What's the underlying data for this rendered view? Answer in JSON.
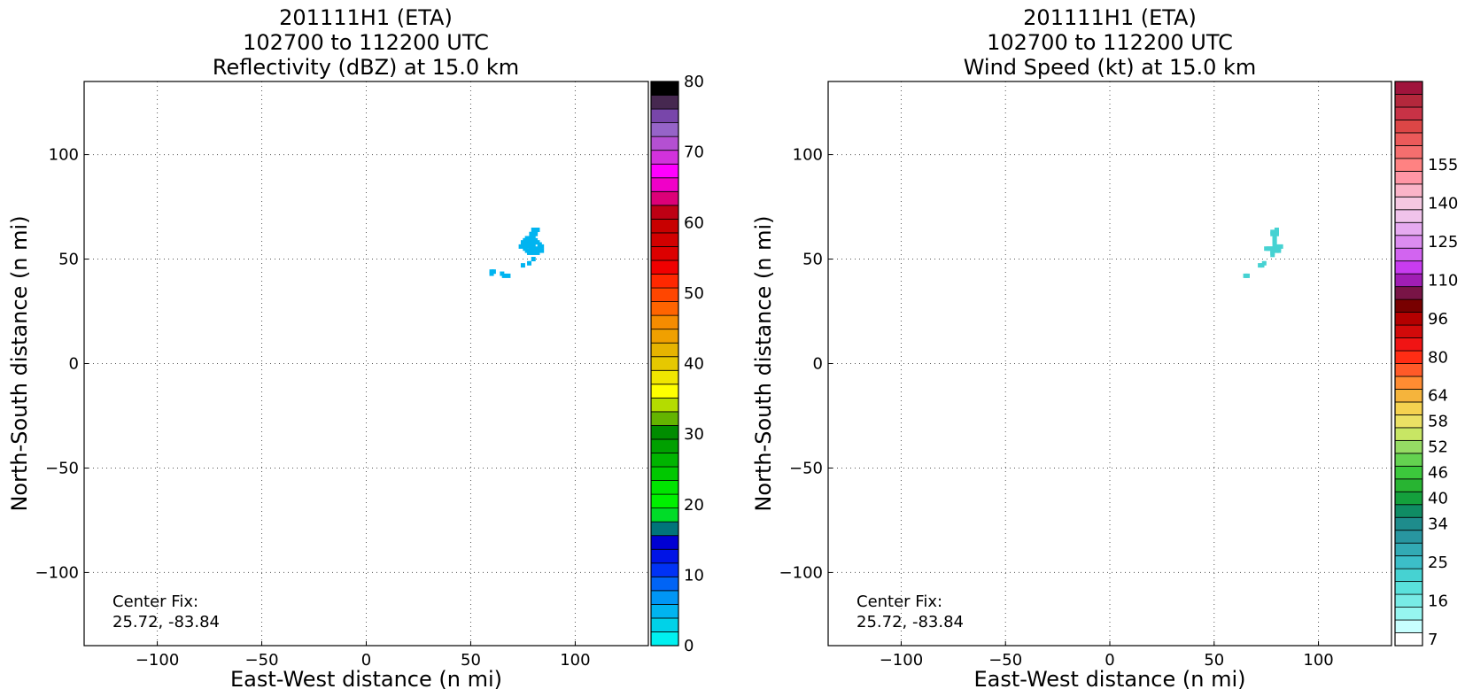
{
  "chart_data": [
    {
      "type": "heatmap",
      "title": [
        "201111H1 (ETA)",
        "102700 to 112200 UTC",
        "Reflectivity (dBZ) at 15.0 km"
      ],
      "xlabel": "East-West distance (n mi)",
      "ylabel": "North-South distance (n mi)",
      "xlim": [
        -135,
        135
      ],
      "ylim": [
        -135,
        135
      ],
      "xticks": [
        -100,
        -50,
        0,
        50,
        100
      ],
      "yticks": [
        -100,
        -50,
        0,
        50,
        100
      ],
      "xtick_labels": [
        "−100",
        "−50",
        "0",
        "50",
        "100"
      ],
      "ytick_labels": [
        "−100",
        "−50",
        "0",
        "50",
        "100"
      ],
      "grid": true,
      "annotation": [
        "Center Fix:",
        "25.72, -83.84"
      ],
      "colorbar": {
        "min": 0,
        "max": 80,
        "ticks": [
          0,
          10,
          20,
          30,
          40,
          50,
          60,
          70,
          80
        ],
        "tick_labels": [
          "0",
          "10",
          "20",
          "30",
          "40",
          "50",
          "60",
          "70",
          "80"
        ],
        "colors": [
          "#00f0f0",
          "#00d2e8",
          "#00b4f0",
          "#0096f5",
          "#0064f5",
          "#0032f5",
          "#0014e6",
          "#0000d2",
          "#00747a",
          "#00dc28",
          "#00f000",
          "#00e400",
          "#00c800",
          "#00b400",
          "#00a000",
          "#008c00",
          "#64b400",
          "#b4dc00",
          "#ffff00",
          "#f0e600",
          "#e6c800",
          "#e6b400",
          "#f0a000",
          "#f58c00",
          "#ff6400",
          "#ff4600",
          "#ff2800",
          "#f00000",
          "#dc0000",
          "#d20000",
          "#c80000",
          "#be0014",
          "#dc0078",
          "#f000c8",
          "#ff00ff",
          "#d232dc",
          "#b450d2",
          "#9664c8",
          "#7846aa",
          "#462850",
          "#000000"
        ]
      },
      "points": [
        [
          60,
          44
        ],
        [
          60,
          43
        ],
        [
          61,
          44
        ],
        [
          65,
          43
        ],
        [
          66,
          42
        ],
        [
          68,
          42
        ],
        [
          75,
          47
        ],
        [
          78,
          48
        ],
        [
          80,
          50
        ],
        [
          74,
          56
        ],
        [
          75,
          57
        ],
        [
          76,
          56
        ],
        [
          77,
          58
        ],
        [
          78,
          59
        ],
        [
          79,
          60
        ],
        [
          80,
          61
        ],
        [
          81,
          62
        ],
        [
          81,
          63
        ],
        [
          82,
          64
        ],
        [
          80,
          64
        ],
        [
          79,
          62
        ],
        [
          77,
          60
        ],
        [
          76,
          59
        ],
        [
          75,
          58
        ],
        [
          78,
          56
        ],
        [
          79,
          55
        ],
        [
          80,
          55
        ],
        [
          81,
          54
        ],
        [
          82,
          55
        ],
        [
          83,
          56
        ],
        [
          83,
          57
        ],
        [
          82,
          58
        ],
        [
          81,
          59
        ],
        [
          80,
          58
        ],
        [
          79,
          57
        ],
        [
          78,
          58
        ],
        [
          77,
          57
        ],
        [
          76,
          55
        ],
        [
          77,
          54
        ],
        [
          78,
          53
        ],
        [
          80,
          53
        ],
        [
          82,
          53
        ],
        [
          84,
          54
        ],
        [
          84,
          56
        ],
        [
          80,
          56
        ],
        [
          79,
          59
        ]
      ],
      "point_value": 2
    },
    {
      "type": "heatmap",
      "title": [
        "201111H1 (ETA)",
        "102700 to 112200 UTC",
        "Wind Speed (kt) at 15.0 km"
      ],
      "xlabel": "East-West distance (n mi)",
      "ylabel": "North-South distance (n mi)",
      "xlim": [
        -135,
        135
      ],
      "ylim": [
        -135,
        135
      ],
      "xticks": [
        -100,
        -50,
        0,
        50,
        100
      ],
      "yticks": [
        -100,
        -50,
        0,
        50,
        100
      ],
      "xtick_labels": [
        "−100",
        "−50",
        "0",
        "50",
        "100"
      ],
      "ytick_labels": [
        "−100",
        "−50",
        "0",
        "50",
        "100"
      ],
      "grid": true,
      "annotation": [
        "Center Fix:",
        "25.72, -83.84"
      ],
      "colorbar": {
        "levels": 40,
        "tick_labels": [
          "7",
          "16",
          "25",
          "34",
          "40",
          "46",
          "52",
          "58",
          "64",
          "80",
          "96",
          "110",
          "125",
          "140",
          "155"
        ],
        "tick_levels": [
          0,
          3,
          6,
          9,
          11,
          13,
          15,
          17,
          19,
          22,
          25,
          28,
          31,
          34,
          37
        ],
        "colors": [
          "#ffffff",
          "#c8ffff",
          "#96f5f0",
          "#78ebe6",
          "#5ae1dc",
          "#46d2d2",
          "#3cbec8",
          "#32aab4",
          "#2896a0",
          "#1e8c8c",
          "#0f8c64",
          "#14a03c",
          "#28b432",
          "#3cc83c",
          "#64d250",
          "#96dc64",
          "#c8e664",
          "#ebe164",
          "#f5d250",
          "#f5b43c",
          "#ff8c32",
          "#ff5a28",
          "#ff2d14",
          "#f01414",
          "#d20a0a",
          "#b40000",
          "#780000",
          "#781446",
          "#a01eb4",
          "#c83cf0",
          "#d264f0",
          "#dc8cf0",
          "#e6aaf0",
          "#f0c3eb",
          "#f5c8e1",
          "#fab4c8",
          "#ff96a5",
          "#ff8282",
          "#f56e6e",
          "#eb5a5a",
          "#dc4646",
          "#c83246",
          "#b4283c",
          "#a0143c"
        ]
      },
      "points": [
        [
          75,
          55
        ],
        [
          76,
          55
        ],
        [
          77,
          55
        ],
        [
          78,
          55
        ],
        [
          79,
          55
        ],
        [
          80,
          55
        ],
        [
          81,
          55
        ],
        [
          82,
          56
        ],
        [
          80,
          56
        ],
        [
          79,
          57
        ],
        [
          79,
          58
        ],
        [
          79,
          59
        ],
        [
          79,
          60
        ],
        [
          79,
          61
        ],
        [
          79,
          62
        ],
        [
          80,
          62
        ],
        [
          80,
          63
        ],
        [
          80,
          64
        ],
        [
          78,
          63
        ],
        [
          78,
          62
        ],
        [
          78,
          54
        ],
        [
          78,
          53
        ],
        [
          78,
          52
        ],
        [
          80,
          54
        ],
        [
          81,
          54
        ],
        [
          74,
          48
        ],
        [
          73,
          47
        ],
        [
          72,
          47
        ],
        [
          65,
          42
        ],
        [
          66,
          42
        ]
      ],
      "point_value": 5
    }
  ]
}
